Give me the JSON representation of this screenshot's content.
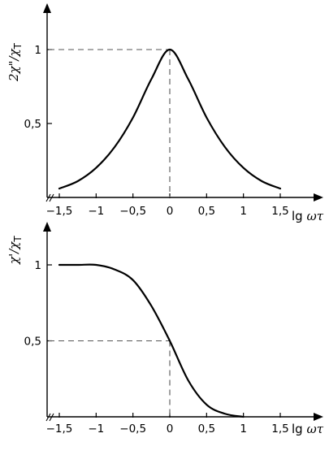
{
  "chart_data": [
    {
      "type": "line",
      "ylabel": "2χ\"/χT",
      "xlabel": "lg ωτ",
      "xlim": [
        -1.5,
        1.5
      ],
      "ylim": [
        0,
        1
      ],
      "x_ticks": [
        "−1,5",
        "−1",
        "−0,5",
        "0",
        "0,5",
        "1",
        "1,5"
      ],
      "y_ticks": [
        "0,5",
        "1"
      ],
      "grid": false,
      "reference_point": {
        "x": 0,
        "y": 1
      },
      "series": [
        {
          "x": [
            -1.5,
            -1.25,
            -1.0,
            -0.75,
            -0.5,
            -0.25,
            0.0,
            0.25,
            0.5,
            0.75,
            1.0,
            1.25,
            1.5
          ],
          "y": [
            0.06,
            0.11,
            0.2,
            0.34,
            0.54,
            0.8,
            1.0,
            0.8,
            0.54,
            0.34,
            0.2,
            0.11,
            0.06
          ]
        }
      ]
    },
    {
      "type": "line",
      "ylabel": "χ'/χT",
      "xlabel": "lg ωτ",
      "xlim": [
        -1.5,
        1.5
      ],
      "ylim": [
        0,
        1
      ],
      "x_ticks": [
        "−1,5",
        "−1",
        "−0,5",
        "0",
        "0,5",
        "1",
        "1,5"
      ],
      "y_ticks": [
        "0,5",
        "1"
      ],
      "grid": false,
      "reference_point": {
        "x": 0,
        "y": 0.5
      },
      "series": [
        {
          "x": [
            -1.5,
            -1.25,
            -1.0,
            -0.75,
            -0.5,
            -0.25,
            0.0,
            0.25,
            0.5,
            0.75,
            1.0
          ],
          "y": [
            1.0,
            1.0,
            1.0,
            0.97,
            0.9,
            0.73,
            0.5,
            0.24,
            0.08,
            0.02,
            0.0
          ]
        }
      ]
    }
  ]
}
